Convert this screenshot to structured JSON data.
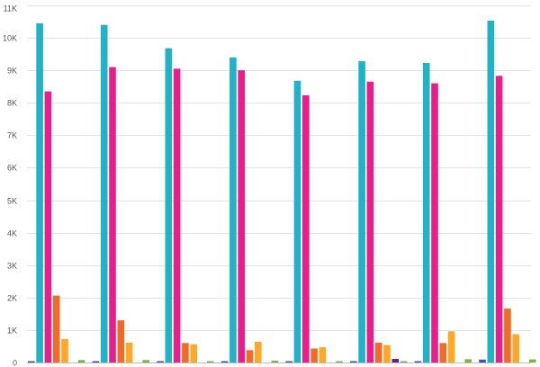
{
  "chart_data": {
    "type": "bar",
    "title": "",
    "xlabel": "",
    "ylabel": "",
    "ylim": [
      0,
      11000
    ],
    "y_ticks": [
      {
        "value": 0,
        "label": "0"
      },
      {
        "value": 1000,
        "label": "1K"
      },
      {
        "value": 2000,
        "label": "2K"
      },
      {
        "value": 3000,
        "label": "3K"
      },
      {
        "value": 4000,
        "label": "4K"
      },
      {
        "value": 5000,
        "label": "5K"
      },
      {
        "value": 6000,
        "label": "6K"
      },
      {
        "value": 7000,
        "label": "7K"
      },
      {
        "value": 8000,
        "label": "8K"
      },
      {
        "value": 9000,
        "label": "9K"
      },
      {
        "value": 10000,
        "label": "10K"
      },
      {
        "value": 11000,
        "label": "11K"
      }
    ],
    "grid": true,
    "legend": "none",
    "categories": [
      "",
      "",
      "",
      "",
      "",
      "",
      "",
      ""
    ],
    "series": [
      {
        "color": "#3f51b5",
        "values": [
          20,
          25,
          20,
          15,
          15,
          15,
          30,
          90
        ]
      },
      {
        "color": "#1fb2c8",
        "values": [
          10450,
          10400,
          9680,
          9400,
          8680,
          9280,
          9230,
          10530
        ]
      },
      {
        "color": "#e91e8c",
        "values": [
          8350,
          9100,
          9050,
          9000,
          8230,
          8650,
          8600,
          8830
        ]
      },
      {
        "color": "#f06b25",
        "values": [
          2060,
          1300,
          600,
          380,
          430,
          610,
          600,
          1660
        ]
      },
      {
        "color": "#ffa726",
        "values": [
          720,
          610,
          560,
          640,
          470,
          540,
          960,
          870
        ]
      },
      {
        "color": "#6a1b9a",
        "values": [
          0,
          0,
          0,
          0,
          0,
          110,
          0,
          0
        ]
      },
      {
        "color": "#7cb342",
        "values": [
          75,
          75,
          20,
          55,
          15,
          15,
          100,
          95
        ]
      }
    ]
  }
}
